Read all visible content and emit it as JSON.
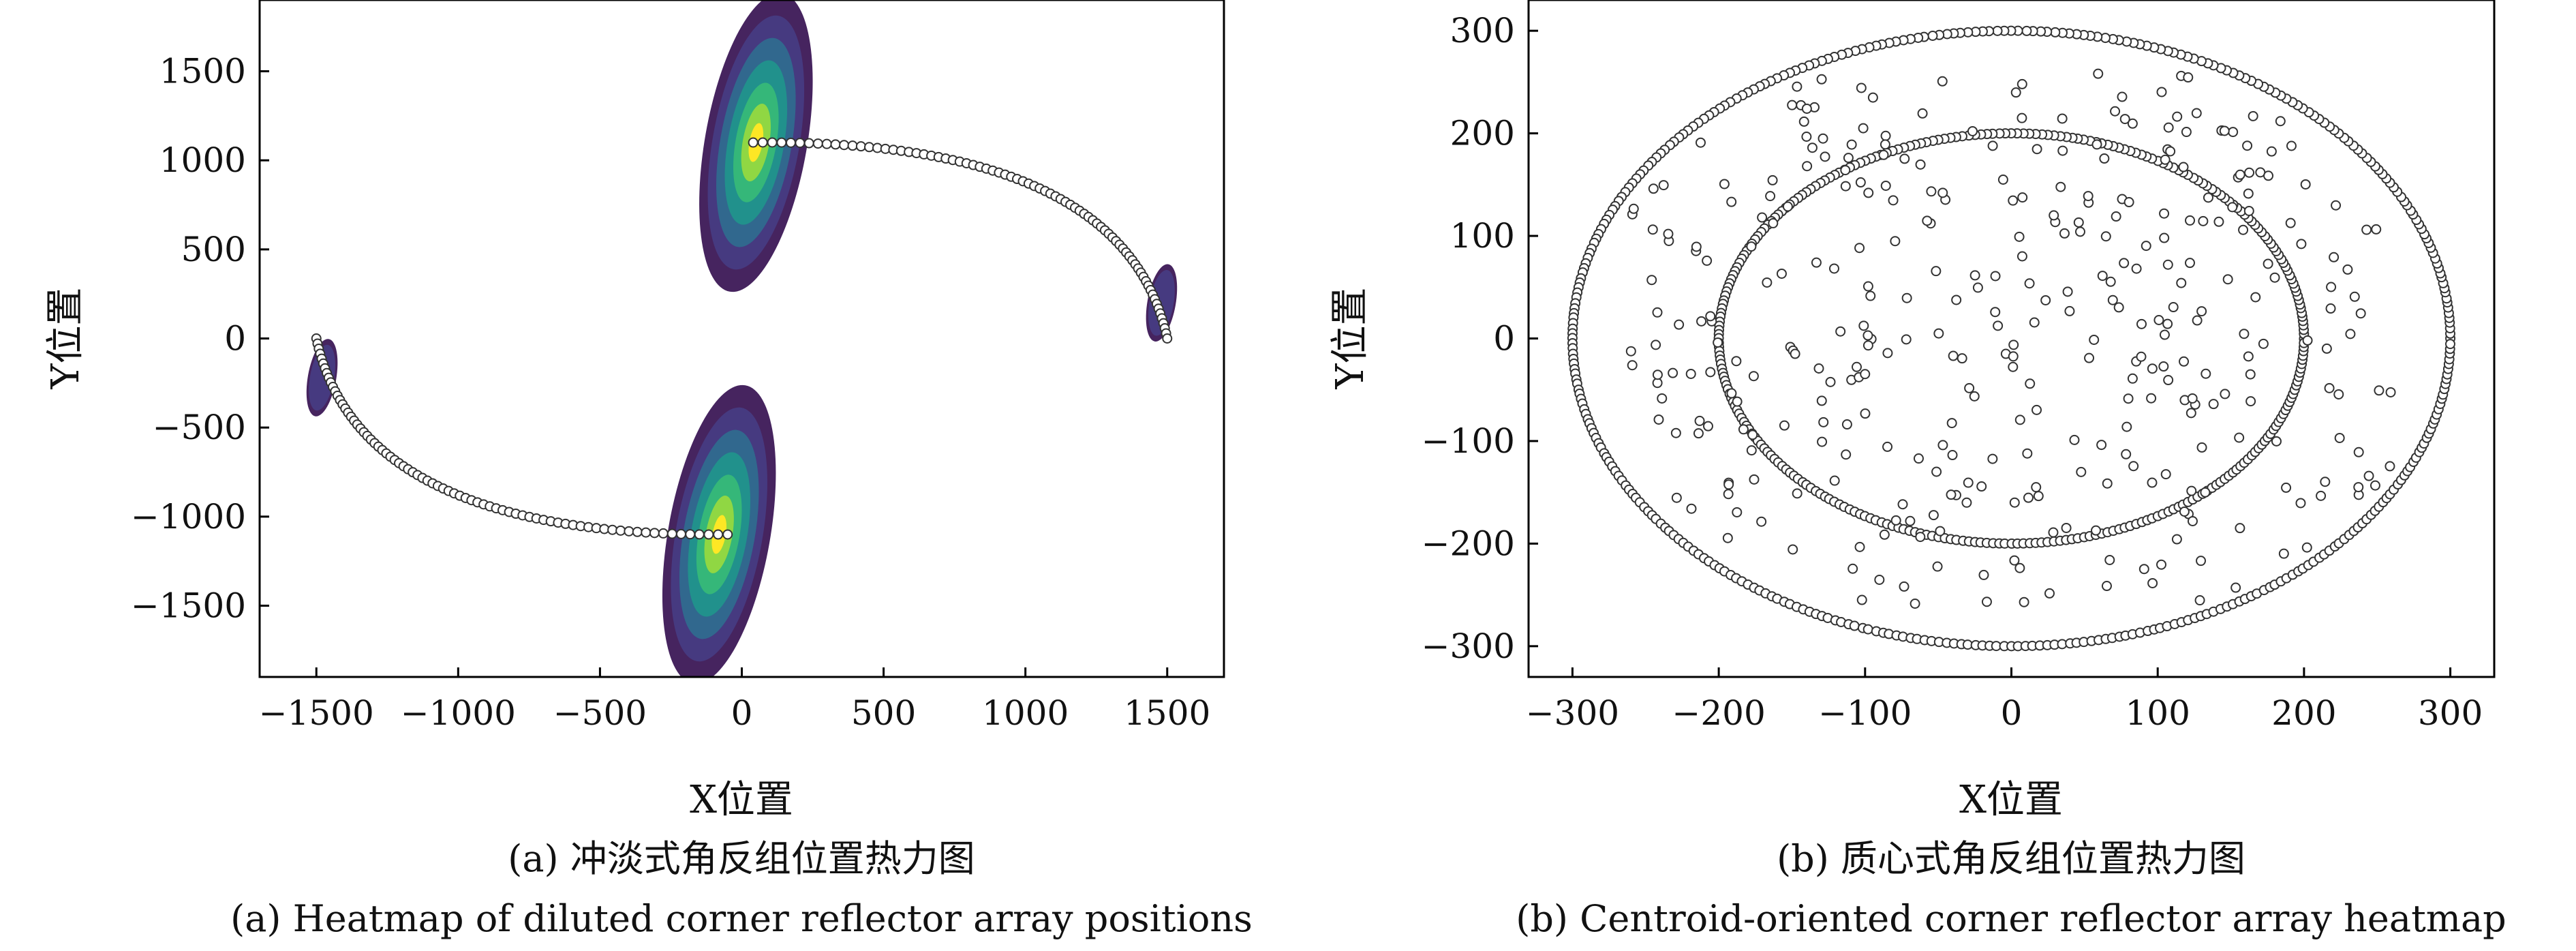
{
  "chart_data": [
    {
      "type": "scatter",
      "panel": "a",
      "xlabel": "X位置",
      "ylabel": "Y位置",
      "xlim": [
        -1700,
        1700
      ],
      "ylim": [
        -1900,
        1900
      ],
      "xticks": [
        -1500,
        -1000,
        -500,
        0,
        500,
        1000,
        1500
      ],
      "yticks": [
        -1500,
        -1000,
        -500,
        0,
        500,
        1000,
        1500
      ],
      "heat_blobs": [
        {
          "cx": 50,
          "cy": 1100,
          "rx": 180,
          "ry": 850,
          "angle_deg": -10
        },
        {
          "cx": -80,
          "cy": -1100,
          "rx": 180,
          "ry": 850,
          "angle_deg": -10
        },
        {
          "cx": 1480,
          "cy": 200,
          "rx": 50,
          "ry": 220,
          "angle_deg": -10
        },
        {
          "cx": -1480,
          "cy": -220,
          "rx": 50,
          "ry": 220,
          "angle_deg": -10
        }
      ],
      "arc_upper": {
        "start": [
          40,
          1100
        ],
        "end": [
          1500,
          0
        ],
        "points": 78
      },
      "arc_lower": {
        "start": [
          -1500,
          0
        ],
        "end": [
          -50,
          -1100
        ],
        "points": 78
      },
      "caption_zh": "(a) 冲淡式角反组位置热力图",
      "caption_en": "(a) Heatmap of diluted corner reflector array positions"
    },
    {
      "type": "scatter",
      "panel": "b",
      "xlabel": "X位置",
      "ylabel": "Y位置",
      "xlim": [
        -330,
        330
      ],
      "ylim": [
        -330,
        330
      ],
      "xticks": [
        -300,
        -200,
        -100,
        0,
        100,
        200,
        300
      ],
      "yticks": [
        -300,
        -200,
        -100,
        0,
        100,
        200,
        300
      ],
      "rings": [
        {
          "rx": 300,
          "ry": 300,
          "points": 380
        },
        {
          "rx": 200,
          "ry": 200,
          "points": 300
        }
      ],
      "random_points": {
        "count": 360,
        "x_range": [
          -260,
          260
        ],
        "y_range": [
          -260,
          260
        ]
      },
      "caption_zh": "(b) 质心式角反组位置热力图",
      "caption_en": "(b) Centroid-oriented corner reflector array heatmap"
    }
  ],
  "colors": {
    "heat_outer": "#46245f",
    "heat_mid1": "#463a80",
    "heat_mid2": "#31688e",
    "heat_mid3": "#21918c",
    "heat_mid4": "#35b779",
    "heat_inner": "#90d743",
    "heat_core": "#fde725",
    "marker_fill": "#ffffff",
    "marker_stroke": "#333333",
    "axis": "#000000"
  }
}
